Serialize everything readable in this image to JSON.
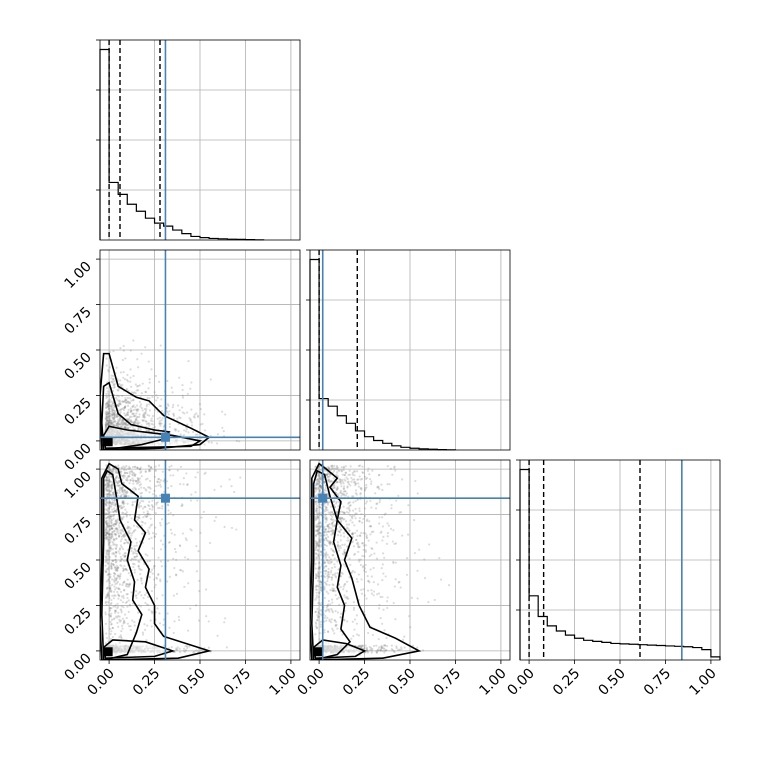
{
  "chart_data": {
    "type": "scatter",
    "subtype": "corner_plot",
    "title": "",
    "parameters": [
      "",
      "",
      ""
    ],
    "range": [
      -0.05,
      1.05
    ],
    "tick_values": [
      0.0,
      0.25,
      0.5,
      0.75,
      1.0
    ],
    "tick_labels": [
      "0.00",
      "0.25",
      "0.50",
      "0.75",
      "1.00"
    ],
    "grid": true,
    "legend": "none",
    "truth": [
      0.31,
      0.02,
      0.84
    ],
    "truth_color": "#4682b4",
    "hist_color": "#000000",
    "point_color": "#808080",
    "quantiles": [
      [
        0.0,
        0.06,
        0.28
      ],
      [
        0.0,
        0.02,
        0.21
      ],
      [
        0.0,
        0.08,
        0.61
      ]
    ],
    "histograms": [
      {
        "param": 0,
        "bin_edges": [
          -0.05,
          0.0,
          0.05,
          0.1,
          0.15,
          0.2,
          0.25,
          0.3,
          0.35,
          0.4,
          0.45,
          0.5,
          0.55,
          0.6,
          0.65,
          0.7,
          0.75,
          0.8,
          0.85
        ],
        "counts": [
          960,
          290,
          230,
          180,
          145,
          110,
          85,
          70,
          50,
          32,
          18,
          12,
          8,
          6,
          4,
          3,
          2,
          1
        ]
      },
      {
        "param": 1,
        "bin_edges": [
          -0.05,
          0.0,
          0.05,
          0.1,
          0.15,
          0.2,
          0.25,
          0.3,
          0.35,
          0.4,
          0.45,
          0.5,
          0.55,
          0.6,
          0.65,
          0.7,
          0.75
        ],
        "counts": [
          1000,
          270,
          230,
          180,
          140,
          100,
          70,
          50,
          35,
          22,
          14,
          9,
          6,
          4,
          2,
          1
        ]
      },
      {
        "param": 2,
        "bin_edges": [
          -0.05,
          0.0,
          0.05,
          0.1,
          0.15,
          0.2,
          0.25,
          0.3,
          0.35,
          0.4,
          0.45,
          0.5,
          0.55,
          0.6,
          0.65,
          0.7,
          0.75,
          0.8,
          0.85,
          0.9,
          0.95,
          1.0,
          1.05
        ],
        "counts": [
          920,
          310,
          210,
          165,
          140,
          120,
          105,
          95,
          90,
          85,
          80,
          78,
          76,
          74,
          72,
          70,
          68,
          66,
          64,
          60,
          50,
          15
        ]
      }
    ],
    "pairs": [
      {
        "x_param": 0,
        "y_param": 1,
        "n_points": 1400,
        "contours": [
          [
            [
              -0.02,
              -0.04
            ],
            [
              0.45,
              -0.03
            ],
            [
              0.5,
              0.0
            ],
            [
              0.35,
              0.03
            ],
            [
              0.1,
              0.06
            ],
            [
              0.0,
              0.08
            ],
            [
              -0.03,
              0.03
            ]
          ],
          [
            [
              -0.03,
              -0.05
            ],
            [
              0.18,
              -0.02
            ],
            [
              0.3,
              0.01
            ],
            [
              0.33,
              0.05
            ],
            [
              0.25,
              0.06
            ],
            [
              0.12,
              0.09
            ],
            [
              0.05,
              0.15
            ],
            [
              0.0,
              0.32
            ],
            [
              -0.03,
              0.3
            ],
            [
              -0.04,
              0.1
            ]
          ],
          [
            [
              -0.04,
              -0.05
            ],
            [
              0.28,
              -0.04
            ],
            [
              0.5,
              -0.02
            ],
            [
              0.55,
              0.02
            ],
            [
              0.45,
              0.07
            ],
            [
              0.3,
              0.14
            ],
            [
              0.22,
              0.22
            ],
            [
              0.15,
              0.24
            ],
            [
              0.05,
              0.3
            ],
            [
              0.0,
              0.48
            ],
            [
              -0.03,
              0.48
            ],
            [
              -0.05,
              0.25
            ]
          ]
        ]
      },
      {
        "x_param": 0,
        "y_param": 2,
        "n_points": 1700,
        "contours": [
          [
            [
              -0.02,
              -0.04
            ],
            [
              0.25,
              -0.03
            ],
            [
              0.35,
              0.0
            ],
            [
              0.2,
              0.05
            ],
            [
              0.02,
              0.06
            ],
            [
              -0.03,
              0.02
            ]
          ],
          [
            [
              -0.03,
              -0.05
            ],
            [
              0.1,
              -0.02
            ],
            [
              0.15,
              0.1
            ],
            [
              0.18,
              0.2
            ],
            [
              0.13,
              0.28
            ],
            [
              0.14,
              0.38
            ],
            [
              0.1,
              0.5
            ],
            [
              0.12,
              0.6
            ],
            [
              0.06,
              0.72
            ],
            [
              0.04,
              0.85
            ],
            [
              0.02,
              0.97
            ],
            [
              -0.01,
              0.99
            ],
            [
              -0.03,
              0.95
            ],
            [
              -0.03,
              0.6
            ],
            [
              -0.04,
              0.2
            ]
          ],
          [
            [
              -0.04,
              -0.05
            ],
            [
              0.38,
              -0.04
            ],
            [
              0.55,
              0.0
            ],
            [
              0.3,
              0.08
            ],
            [
              0.25,
              0.15
            ],
            [
              0.25,
              0.25
            ],
            [
              0.2,
              0.35
            ],
            [
              0.22,
              0.45
            ],
            [
              0.16,
              0.55
            ],
            [
              0.2,
              0.65
            ],
            [
              0.14,
              0.72
            ],
            [
              0.16,
              0.85
            ],
            [
              0.07,
              0.92
            ],
            [
              0.05,
              1.0
            ],
            [
              0.0,
              1.03
            ],
            [
              -0.04,
              0.95
            ],
            [
              -0.04,
              0.5
            ],
            [
              -0.05,
              0.15
            ]
          ]
        ]
      },
      {
        "x_param": 1,
        "y_param": 2,
        "n_points": 1700,
        "contours": [
          [
            [
              -0.02,
              -0.04
            ],
            [
              0.2,
              -0.03
            ],
            [
              0.25,
              0.0
            ],
            [
              0.15,
              0.04
            ],
            [
              0.02,
              0.06
            ],
            [
              -0.03,
              0.02
            ]
          ],
          [
            [
              -0.03,
              -0.05
            ],
            [
              0.1,
              -0.02
            ],
            [
              0.17,
              0.05
            ],
            [
              0.12,
              0.12
            ],
            [
              0.14,
              0.25
            ],
            [
              0.1,
              0.35
            ],
            [
              0.12,
              0.47
            ],
            [
              0.08,
              0.6
            ],
            [
              0.1,
              0.72
            ],
            [
              0.06,
              0.85
            ],
            [
              0.03,
              0.97
            ],
            [
              -0.01,
              0.99
            ],
            [
              -0.03,
              0.92
            ],
            [
              -0.03,
              0.5
            ],
            [
              -0.04,
              0.15
            ]
          ],
          [
            [
              -0.04,
              -0.05
            ],
            [
              0.35,
              -0.04
            ],
            [
              0.55,
              0.0
            ],
            [
              0.42,
              0.07
            ],
            [
              0.28,
              0.13
            ],
            [
              0.22,
              0.25
            ],
            [
              0.18,
              0.4
            ],
            [
              0.14,
              0.5
            ],
            [
              0.18,
              0.62
            ],
            [
              0.1,
              0.72
            ],
            [
              0.12,
              0.82
            ],
            [
              0.06,
              0.9
            ],
            [
              0.1,
              0.95
            ],
            [
              0.04,
              1.0
            ],
            [
              0.0,
              1.03
            ],
            [
              -0.04,
              0.95
            ],
            [
              -0.04,
              0.5
            ],
            [
              -0.05,
              0.15
            ]
          ]
        ]
      }
    ]
  }
}
